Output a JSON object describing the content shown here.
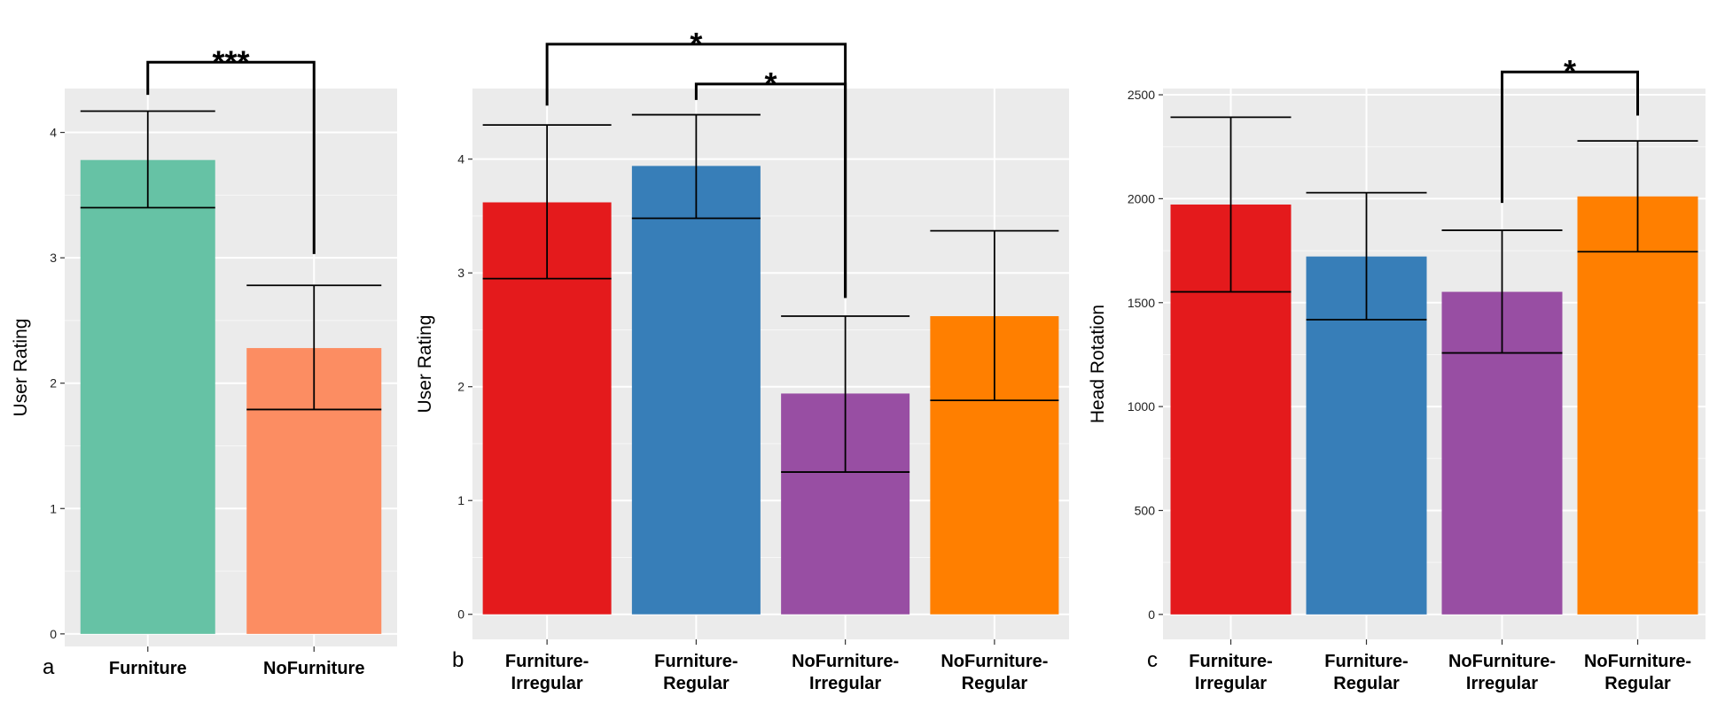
{
  "chart_data": [
    {
      "type": "bar",
      "panel_label": "a",
      "ylabel": "User Rating",
      "xlabel": "",
      "ylim": [
        -0.1,
        4.35
      ],
      "yticks": [
        0,
        1,
        2,
        3,
        4
      ],
      "categories": [
        [
          "Furniture"
        ],
        [
          "NoFurniture"
        ]
      ],
      "values": [
        3.78,
        2.28
      ],
      "error_low": [
        3.4,
        1.79
      ],
      "error_high": [
        4.17,
        2.78
      ],
      "colors": [
        "#66c2a5",
        "#fc8d62"
      ],
      "significance": [
        {
          "from": 0,
          "to": 1,
          "label": "***",
          "left_base": 4.3,
          "right_base": 3.03,
          "top": 4.56
        }
      ]
    },
    {
      "type": "bar",
      "panel_label": "b",
      "ylabel": "User Rating",
      "xlabel": "",
      "ylim": [
        -0.22,
        4.62
      ],
      "yticks": [
        0,
        1,
        2,
        3,
        4
      ],
      "categories": [
        [
          "Furniture-",
          "Irregular"
        ],
        [
          "Furniture-",
          "Regular"
        ],
        [
          "NoFurniture-",
          "Irregular"
        ],
        [
          "NoFurniture-",
          "Regular"
        ]
      ],
      "values": [
        3.62,
        3.94,
        1.94,
        2.62
      ],
      "error_low": [
        2.95,
        3.48,
        1.25,
        1.88
      ],
      "error_high": [
        4.3,
        4.39,
        2.62,
        3.37
      ],
      "colors": [
        "#e41a1c",
        "#377eb8",
        "#984ea3",
        "#ff7f00"
      ],
      "significance": [
        {
          "from": 0,
          "to": 2,
          "label": "*",
          "left_base": 4.47,
          "right_base": 2.78,
          "top": 5.01
        },
        {
          "from": 1,
          "to": 2,
          "label": "*",
          "left_base": 4.52,
          "right_base": 2.78,
          "top": 4.66
        }
      ]
    },
    {
      "type": "bar",
      "panel_label": "c",
      "ylabel": "Head Rotation",
      "xlabel": "",
      "ylim": [
        -120,
        2530
      ],
      "yticks": [
        0,
        500,
        1000,
        1500,
        2000,
        2500
      ],
      "categories": [
        [
          "Furniture-",
          "Irregular"
        ],
        [
          "Furniture-",
          "Regular"
        ],
        [
          "NoFurniture-",
          "Irregular"
        ],
        [
          "NoFurniture-",
          "Regular"
        ]
      ],
      "values": [
        1972,
        1722,
        1552,
        2011
      ],
      "error_low": [
        1552,
        1418,
        1258,
        1745
      ],
      "error_high": [
        2392,
        2029,
        1848,
        2278
      ],
      "colors": [
        "#e41a1c",
        "#377eb8",
        "#984ea3",
        "#ff7f00"
      ],
      "significance": [
        {
          "from": 2,
          "to": 3,
          "label": "*",
          "left_base": 1980,
          "right_base": 2400,
          "top": 2610
        }
      ]
    }
  ]
}
